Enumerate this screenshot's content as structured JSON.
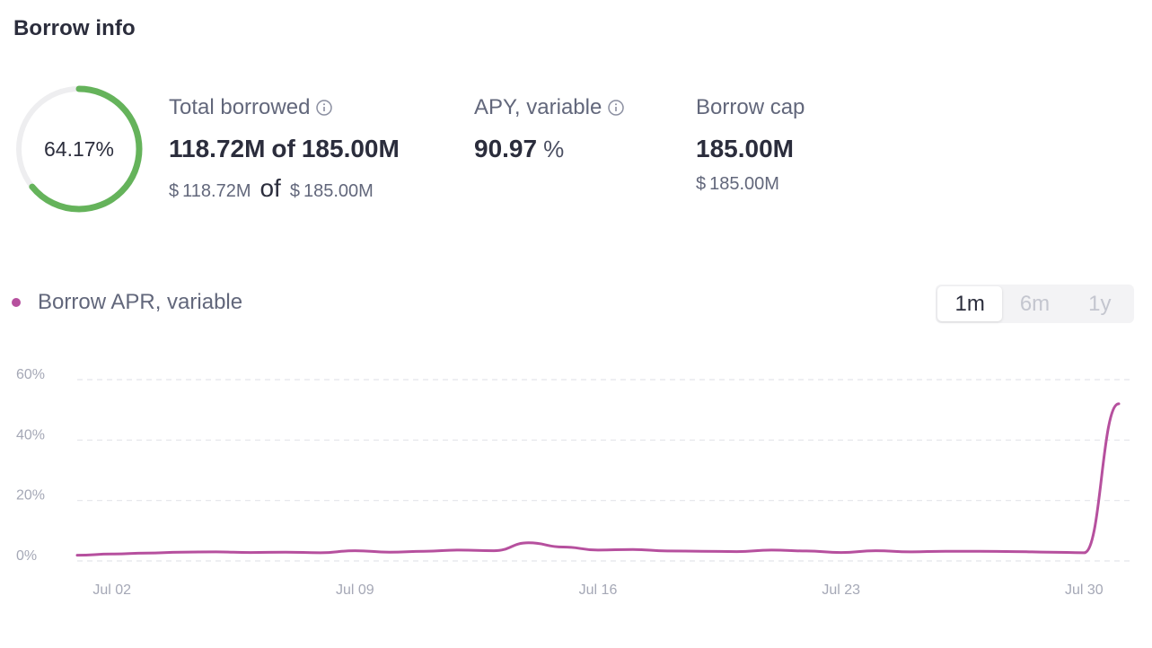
{
  "section": {
    "title": "Borrow info"
  },
  "ring": {
    "percent_label": "64.17%",
    "fraction": 0.6417,
    "color": "#65b35b",
    "track_color": "#eeeef0"
  },
  "stats": {
    "total_borrowed": {
      "label": "Total borrowed",
      "amount": "118.72M",
      "of": "of",
      "cap": "185.00M",
      "usd_symbol": "$",
      "usd_amount": "118.72M",
      "usd_of": "of",
      "usd_cap": "185.00M",
      "icon": "info-icon"
    },
    "apy": {
      "label": "APY, variable",
      "value": "90.97",
      "unit": "%",
      "icon": "info-icon"
    },
    "borrow_cap": {
      "label": "Borrow cap",
      "value": "185.00M",
      "usd_symbol": "$",
      "usd_value": "185.00M"
    }
  },
  "legend": {
    "label": "Borrow APR, variable",
    "color": "#b6509e"
  },
  "range": {
    "options": [
      "1m",
      "6m",
      "1y"
    ],
    "selected": "1m"
  },
  "chart_data": {
    "type": "line",
    "series": [
      {
        "name": "Borrow APR, variable",
        "color": "#b6509e",
        "x": [
          "Jul 01",
          "Jul 02",
          "Jul 03",
          "Jul 04",
          "Jul 05",
          "Jul 06",
          "Jul 07",
          "Jul 08",
          "Jul 09",
          "Jul 10",
          "Jul 11",
          "Jul 12",
          "Jul 13",
          "Jul 14",
          "Jul 15",
          "Jul 16",
          "Jul 17",
          "Jul 18",
          "Jul 19",
          "Jul 20",
          "Jul 21",
          "Jul 22",
          "Jul 23",
          "Jul 24",
          "Jul 25",
          "Jul 26",
          "Jul 27",
          "Jul 28",
          "Jul 29",
          "Jul 30",
          "Jul 31"
        ],
        "values": [
          1.9,
          2.3,
          2.6,
          2.9,
          3.0,
          2.8,
          2.9,
          2.7,
          3.4,
          2.9,
          3.2,
          3.6,
          3.4,
          6.0,
          4.6,
          3.6,
          3.8,
          3.3,
          3.2,
          3.1,
          3.6,
          3.3,
          2.8,
          3.4,
          3.0,
          3.2,
          3.2,
          3.1,
          2.9,
          2.7,
          52.0
        ]
      }
    ],
    "x_ticks": [
      "Jul 02",
      "Jul 09",
      "Jul 16",
      "Jul 23",
      "Jul 30"
    ],
    "y_ticks": [
      "0%",
      "20%",
      "40%",
      "60%"
    ],
    "ylim": [
      0,
      60
    ],
    "grid": true,
    "gridline_style": "dashed"
  }
}
